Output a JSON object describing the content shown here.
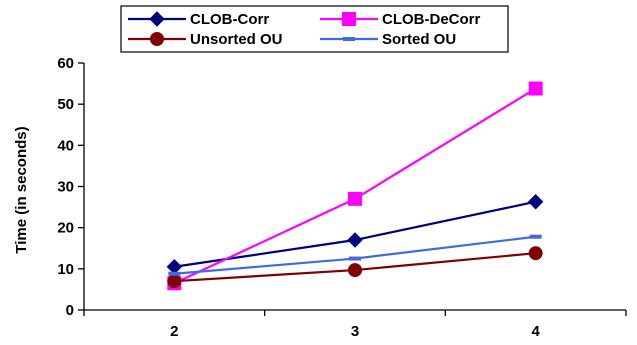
{
  "chart_data": {
    "type": "line",
    "title": "",
    "xlabel": "",
    "ylabel": "Time (in seconds)",
    "x": [
      2,
      3,
      4
    ],
    "xlim": [
      1.5,
      4.5
    ],
    "ylim": [
      0,
      60
    ],
    "yticks": [
      0,
      10,
      20,
      30,
      40,
      50,
      60
    ],
    "grid": false,
    "legend_position": "top",
    "series": [
      {
        "name": "CLOB-Corr",
        "values": [
          10.5,
          17,
          26.3
        ],
        "color": "#000080",
        "marker": "diamond"
      },
      {
        "name": "CLOB-DeCorr",
        "values": [
          6.5,
          27,
          53.8
        ],
        "color": "#ff00ff",
        "marker": "square"
      },
      {
        "name": "Unsorted OU",
        "values": [
          7,
          9.7,
          13.8
        ],
        "color": "#800000",
        "marker": "circle"
      },
      {
        "name": "Sorted OU",
        "values": [
          8.8,
          12.5,
          17.8
        ],
        "color": "#4169e1",
        "marker": "dash"
      }
    ]
  }
}
